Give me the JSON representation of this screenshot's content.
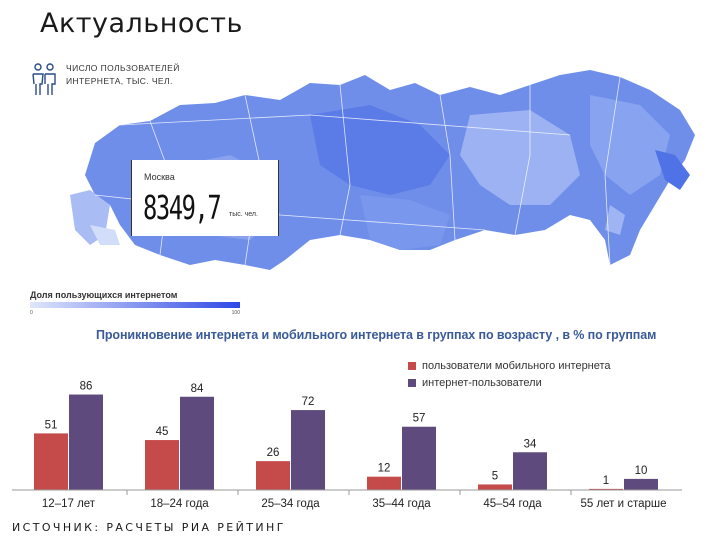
{
  "slide": {
    "title": "Актуальность",
    "source": "ИСТОЧНИК: РАСЧЕТЫ РИА РЕЙТИНГ"
  },
  "map": {
    "users_label_line1": "ЧИСЛО ПОЛЬЗОВАТЕЛЕЙ",
    "users_label_line2": "ИНТЕРНЕТА, ТЫС. ЧЕЛ.",
    "icon": "people-icon",
    "moscow": {
      "city": "Москва",
      "value": "8349,7",
      "unit": "тыс. чел."
    },
    "share_legend": {
      "title": "Доля пользующихся интернетом",
      "min": "0",
      "max": "100"
    },
    "colors": {
      "light": "#c5d2f7",
      "mid": "#7f9cef",
      "dark": "#4f73e6"
    }
  },
  "chart_data": {
    "type": "bar",
    "title": "Проникновение интернета и мобильного интернета в  группах по возрасту , в %  по группам",
    "categories": [
      "12–17  лет",
      "18–24 года",
      "25–34 года",
      "35–44 года",
      "45–54 года",
      "55 лет и старше"
    ],
    "series": [
      {
        "name": "пользователи  мобильного интернета",
        "color": "#c54b4b",
        "values": [
          51,
          45,
          26,
          12,
          5,
          1
        ]
      },
      {
        "name": "интернет-пользователи",
        "color": "#5e4a7d",
        "values": [
          86,
          84,
          72,
          57,
          34,
          10
        ]
      }
    ],
    "ylim": [
      0,
      100
    ],
    "legend_position": "top-right",
    "grid": false
  }
}
